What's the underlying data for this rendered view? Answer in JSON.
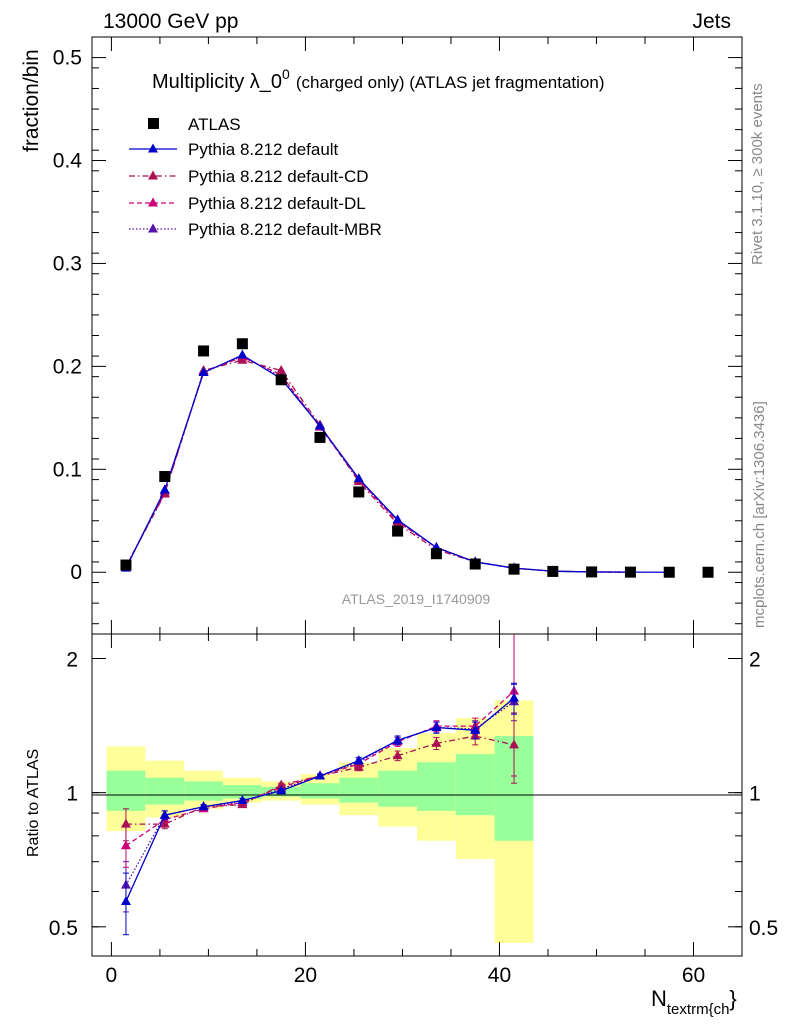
{
  "header": {
    "left": "13000 GeV pp",
    "right": "Jets"
  },
  "side_labels": {
    "rivet": "Rivet 3.1.10, ≥ 300k events",
    "mcplots": "mcplots.cern.ch [arXiv:1306.3436]"
  },
  "chart_data": {
    "type": "line",
    "title": "Multiplicity λ_0⁰ (charged only) (ATLAS jet fragmentation)",
    "title_main": "Multiplicity λ_0",
    "title_sup": "0",
    "title_rest": "(charged only) (ATLAS jet fragmentation)",
    "watermark": "ATLAS_2019_I1740909",
    "xlabel": "N",
    "xlabel_sub": "textrm{ch",
    "xlabel_end": "}",
    "ylabel": "fraction/bin",
    "ratio_ylabel": "Ratio to ATLAS",
    "xlim": [
      -2,
      65
    ],
    "ylim": [
      -0.06,
      0.52
    ],
    "ratio_ylim": [
      0.43,
      2.27
    ],
    "x_ticks": [
      0,
      20,
      40,
      60
    ],
    "x_tick_labels": [
      "0",
      "20",
      "40",
      "60"
    ],
    "y_ticks": [
      0,
      0.1,
      0.2,
      0.3,
      0.4,
      0.5
    ],
    "y_tick_labels": [
      "0",
      "0.1",
      "0.2",
      "0.3",
      "0.4",
      "0.5"
    ],
    "ratio_ticks": [
      0.5,
      1,
      2
    ],
    "ratio_tick_labels": [
      "0.5",
      "1",
      "2"
    ],
    "data": {
      "name": "ATLAS",
      "color": "#000000",
      "x": [
        1.5,
        5.5,
        9.5,
        13.5,
        17.5,
        21.5,
        25.5,
        29.5,
        33.5,
        37.5,
        41.5,
        45.5,
        49.5,
        53.5,
        57.5,
        61.5
      ],
      "y": [
        0.007,
        0.093,
        0.215,
        0.222,
        0.187,
        0.131,
        0.078,
        0.04,
        0.018,
        0.008,
        0.003,
        0.0008,
        0.0003,
        0.0001,
        0.0,
        0.0
      ]
    },
    "bands": {
      "edges": [
        -0.5,
        3.5,
        7.5,
        11.5,
        15.5,
        19.5,
        23.5,
        27.5,
        31.5,
        35.5,
        39.5,
        43.5
      ],
      "inner": {
        "color": "#99ff99",
        "lo": [
          0.91,
          0.94,
          0.96,
          0.97,
          0.98,
          0.97,
          0.95,
          0.93,
          0.91,
          0.89,
          0.78
        ],
        "hi": [
          1.12,
          1.08,
          1.06,
          1.04,
          1.03,
          1.05,
          1.08,
          1.12,
          1.17,
          1.22,
          1.34
        ]
      },
      "outer": {
        "color": "#ffff99",
        "lo": [
          0.82,
          0.88,
          0.92,
          0.95,
          0.96,
          0.94,
          0.89,
          0.84,
          0.78,
          0.71,
          0.46
        ],
        "hi": [
          1.27,
          1.18,
          1.12,
          1.08,
          1.06,
          1.1,
          1.17,
          1.26,
          1.36,
          1.47,
          1.61
        ]
      }
    },
    "series": [
      {
        "name": "Pythia 8.212 default",
        "color": "#0000cc",
        "dash": "solid",
        "x": [
          1.5,
          5.5,
          9.5,
          13.5,
          17.5,
          21.5,
          25.5,
          29.5,
          33.5,
          37.5,
          41.5,
          45.5,
          49.5,
          53.5,
          57.5
        ],
        "y": [
          0.004,
          0.08,
          0.194,
          0.211,
          0.188,
          0.142,
          0.091,
          0.051,
          0.024,
          0.01,
          0.004,
          0.001,
          0.0003,
          0.0001,
          0.0
        ],
        "ratio": [
          0.57,
          0.89,
          0.93,
          0.96,
          1.01,
          1.09,
          1.18,
          1.31,
          1.4,
          1.38,
          1.63
        ],
        "ratio_err": [
          0.09,
          0.02,
          0.01,
          0.01,
          0.01,
          0.01,
          0.02,
          0.03,
          0.04,
          0.06,
          0.13
        ]
      },
      {
        "name": "Pythia 8.212 default-CD",
        "color": "#aa1155",
        "dash": "dashdot",
        "x": [
          1.5,
          5.5,
          9.5,
          13.5,
          17.5,
          21.5,
          25.5,
          29.5,
          33.5,
          37.5,
          41.5,
          45.5,
          49.5,
          53.5
        ],
        "y": [
          0.006,
          0.076,
          0.196,
          0.206,
          0.196,
          0.143,
          0.088,
          0.047,
          0.022,
          0.01,
          0.004,
          0.001,
          0.0003,
          0.0001
        ],
        "ratio": [
          0.85,
          0.85,
          0.93,
          0.94,
          1.04,
          1.09,
          1.14,
          1.21,
          1.29,
          1.34,
          1.28
        ],
        "ratio_err": [
          0.07,
          0.02,
          0.01,
          0.01,
          0.01,
          0.01,
          0.02,
          0.03,
          0.04,
          0.06,
          0.23
        ]
      },
      {
        "name": "Pythia 8.212 default-DL",
        "color": "#cc0077",
        "dash": "dashed",
        "x": [
          1.5,
          5.5,
          9.5,
          13.5,
          17.5,
          21.5,
          25.5,
          29.5,
          33.5,
          37.5,
          41.5,
          45.5,
          49.5,
          53.5
        ],
        "y": [
          0.005,
          0.077,
          0.195,
          0.209,
          0.192,
          0.141,
          0.09,
          0.049,
          0.024,
          0.01,
          0.004,
          0.001,
          0.0003,
          0.0001
        ],
        "ratio": [
          0.76,
          0.87,
          0.92,
          0.95,
          1.03,
          1.09,
          1.16,
          1.3,
          1.41,
          1.41,
          1.69
        ],
        "ratio_err": [
          0.08,
          0.02,
          0.01,
          0.01,
          0.01,
          0.01,
          0.02,
          0.03,
          0.04,
          0.06,
          0.6
        ]
      },
      {
        "name": "Pythia 8.212 default-MBR",
        "color": "#5511aa",
        "dash": "dotted",
        "x": [
          1.5,
          5.5,
          9.5,
          13.5,
          17.5,
          21.5,
          25.5,
          29.5,
          33.5,
          37.5,
          41.5,
          45.5,
          49.5,
          53.5
        ],
        "y": [
          0.005,
          0.079,
          0.194,
          0.21,
          0.19,
          0.142,
          0.09,
          0.05,
          0.024,
          0.01,
          0.004,
          0.001,
          0.0003,
          0.0001
        ],
        "ratio": [
          0.62,
          0.89,
          0.93,
          0.95,
          1.02,
          1.09,
          1.17,
          1.31,
          1.4,
          1.39,
          1.6
        ],
        "ratio_err": [
          0.08,
          0.02,
          0.01,
          0.01,
          0.01,
          0.01,
          0.02,
          0.03,
          0.04,
          0.06,
          0.15
        ]
      }
    ]
  }
}
